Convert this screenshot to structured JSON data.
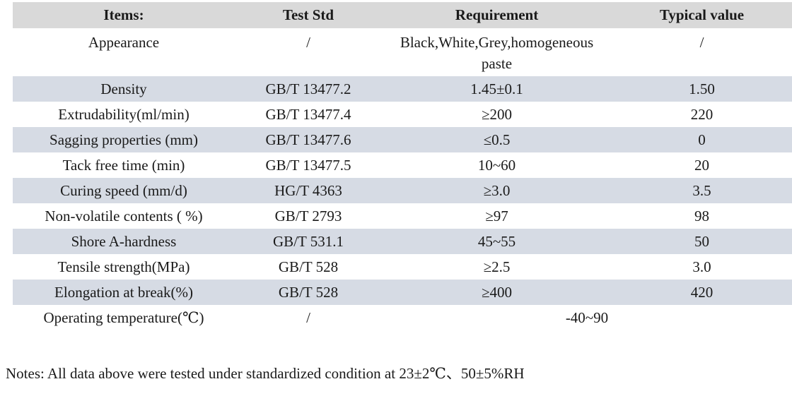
{
  "table": {
    "columns": [
      "Items:",
      "Test Std",
      "Requirement",
      "Typical value"
    ],
    "rows": [
      {
        "item": "Appearance",
        "std": "/",
        "req": "Black,White,Grey,homogeneous\npaste",
        "typ": "/",
        "tall": true
      },
      {
        "item": "Density",
        "std": "GB/T 13477.2",
        "req": "1.45±0.1",
        "typ": "1.50"
      },
      {
        "item": "Extrudability(ml/min)",
        "std": "GB/T 13477.4",
        "req": "≥200",
        "typ": "220"
      },
      {
        "item": "Sagging properties (mm)",
        "std": "GB/T 13477.6",
        "req": "≤0.5",
        "typ": "0"
      },
      {
        "item": "Tack free time (min)",
        "std": "GB/T 13477.5",
        "req": "10~60",
        "typ": "20"
      },
      {
        "item": "Curing speed (mm/d)",
        "std": "HG/T 4363",
        "req": "≥3.0",
        "typ": "3.5"
      },
      {
        "item": "Non-volatile contents ( %)",
        "std": "GB/T 2793",
        "req": "≥97",
        "typ": "98"
      },
      {
        "item": "Shore A-hardness",
        "std": "GB/T 531.1",
        "req": "45~55",
        "typ": "50"
      },
      {
        "item": "Tensile strength(MPa)",
        "std": "GB/T 528",
        "req": "≥2.5",
        "typ": "3.0"
      },
      {
        "item": "Elongation at break(%)",
        "std": "GB/T 528",
        "req": "≥400",
        "typ": "420"
      },
      {
        "item": "Operating temperature(℃)",
        "std": "/",
        "req": "-40~90",
        "typ": null,
        "merge_req_typ": true
      }
    ]
  },
  "notes": "Notes: All data above were tested under standardized condition at 23±2℃、50±5%RH",
  "colors": {
    "header_bg": "#d9d9d9",
    "shaded_row_bg": "#d6dbe4",
    "text": "#1a1a1a"
  }
}
